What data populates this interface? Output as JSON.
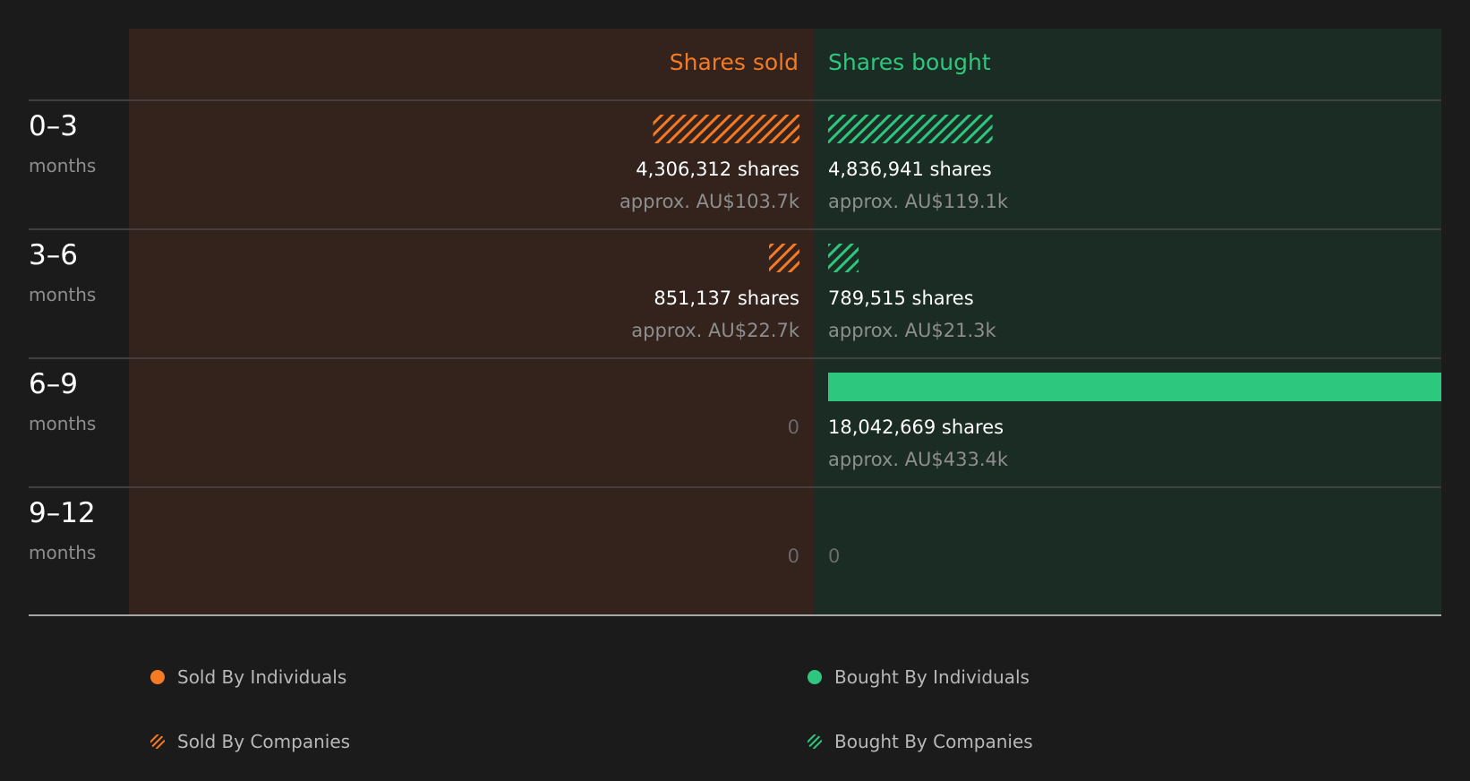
{
  "colors": {
    "background": "#1b1b1b",
    "sold_panel": "#33231c",
    "bought_panel": "#1b2c25",
    "sold": "#f47a24",
    "bought": "#2ec77e",
    "value_text": "#ffffff",
    "muted_text": "#8e8e8e",
    "zero_text": "#6b6b6b"
  },
  "chart_data": {
    "type": "bar",
    "headers": {
      "sold": "Shares sold",
      "bought": "Shares bought"
    },
    "scale_max": 18042669,
    "rows": [
      {
        "period": "0–3",
        "unit": "months",
        "sold": {
          "value": 4306312,
          "label": "4,306,312 shares",
          "approx": "approx. AU$103.7k",
          "by": "companies"
        },
        "bought": {
          "value": 4836941,
          "label": "4,836,941 shares",
          "approx": "approx. AU$119.1k",
          "by": "companies"
        }
      },
      {
        "period": "3–6",
        "unit": "months",
        "sold": {
          "value": 851137,
          "label": "851,137 shares",
          "approx": "approx. AU$22.7k",
          "by": "companies"
        },
        "bought": {
          "value": 789515,
          "label": "789,515 shares",
          "approx": "approx. AU$21.3k",
          "by": "companies"
        }
      },
      {
        "period": "6–9",
        "unit": "months",
        "sold": {
          "value": 0,
          "label": "0",
          "approx": "",
          "by": ""
        },
        "bought": {
          "value": 18042669,
          "label": "18,042,669 shares",
          "approx": "approx. AU$433.4k",
          "by": "individuals"
        }
      },
      {
        "period": "9–12",
        "unit": "months",
        "sold": {
          "value": 0,
          "label": "0",
          "approx": "",
          "by": ""
        },
        "bought": {
          "value": 0,
          "label": "0",
          "approx": "",
          "by": ""
        }
      }
    ],
    "legend": [
      {
        "label": "Sold By Individuals",
        "side": "sold",
        "style": "solid"
      },
      {
        "label": "Bought By Individuals",
        "side": "bought",
        "style": "solid"
      },
      {
        "label": "Sold By Companies",
        "side": "sold",
        "style": "hatched"
      },
      {
        "label": "Bought By Companies",
        "side": "bought",
        "style": "hatched"
      }
    ]
  }
}
